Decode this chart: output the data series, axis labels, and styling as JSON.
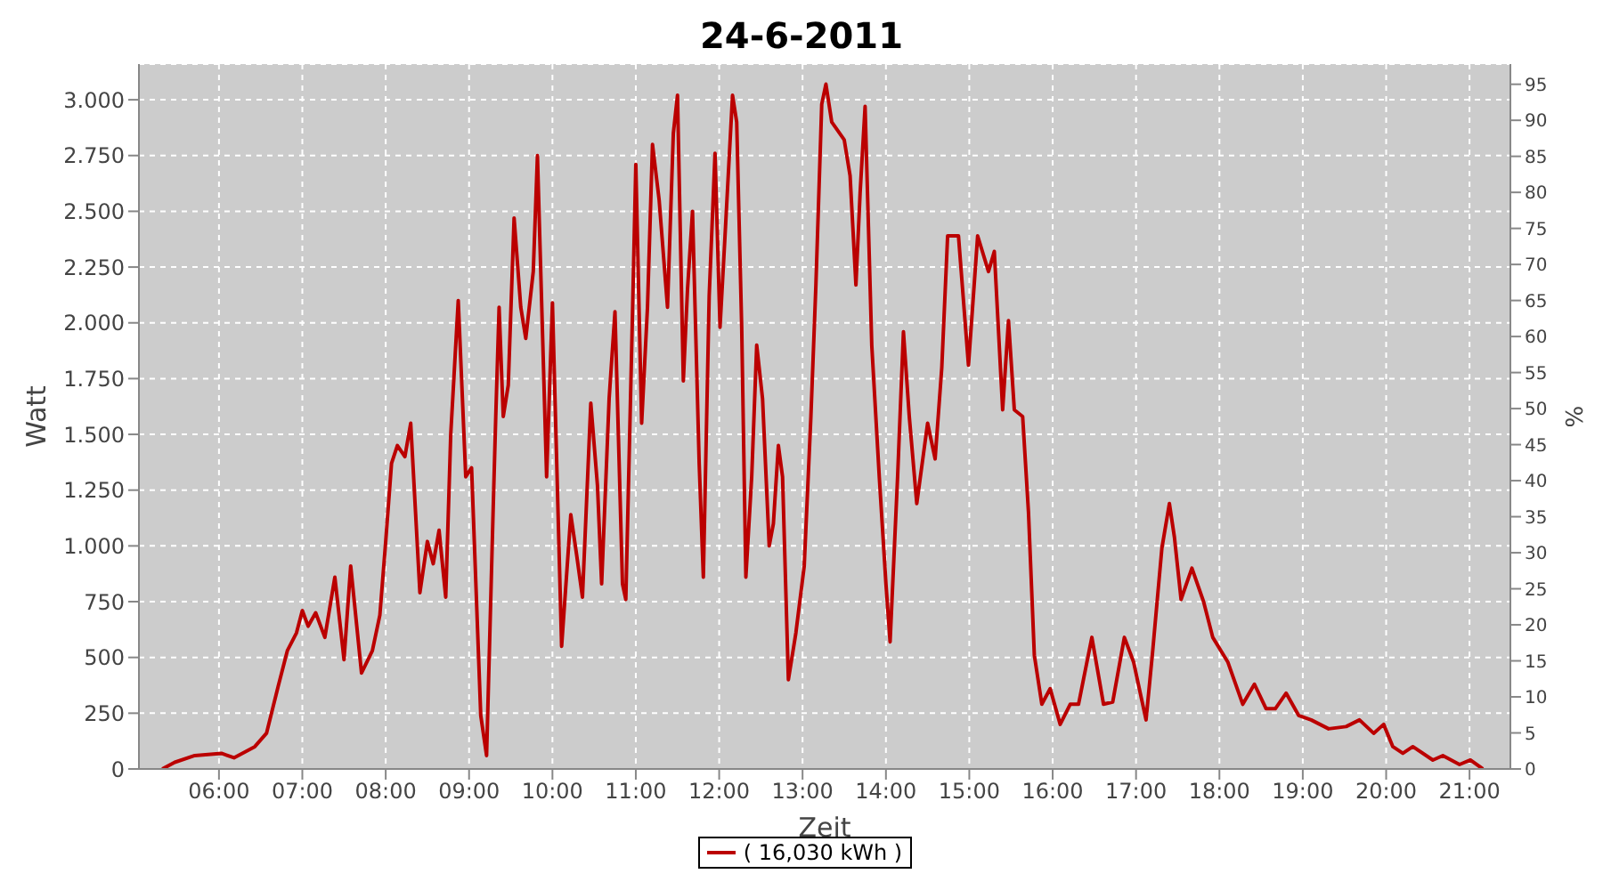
{
  "chart_data": {
    "type": "line",
    "title": "24-6-2011",
    "xlabel": "Zeit",
    "ylabel": "Watt",
    "y2label": "%",
    "x": [
      5.32,
      5.47,
      5.71,
      6.03,
      6.18,
      6.43,
      6.57,
      6.71,
      6.82,
      6.93,
      7.0,
      7.07,
      7.16,
      7.27,
      7.39,
      7.5,
      7.58,
      7.71,
      7.84,
      7.93,
      8.0,
      8.07,
      8.14,
      8.23,
      8.3,
      8.41,
      8.5,
      8.57,
      8.64,
      8.72,
      8.78,
      8.87,
      8.96,
      9.03,
      9.14,
      9.21,
      9.29,
      9.32,
      9.36,
      9.41,
      9.47,
      9.54,
      9.62,
      9.68,
      9.77,
      9.82,
      9.93,
      10.0,
      10.11,
      10.22,
      10.29,
      10.36,
      10.46,
      10.54,
      10.59,
      10.68,
      10.75,
      10.84,
      10.88,
      10.96,
      11.0,
      11.07,
      11.14,
      11.2,
      11.28,
      11.38,
      11.45,
      11.5,
      11.57,
      11.62,
      11.68,
      11.76,
      11.81,
      11.88,
      11.95,
      12.01,
      12.07,
      12.16,
      12.21,
      12.27,
      12.32,
      12.39,
      12.45,
      12.52,
      12.6,
      12.65,
      12.71,
      12.76,
      12.83,
      12.92,
      13.02,
      13.1,
      13.16,
      13.23,
      13.28,
      13.35,
      13.5,
      13.57,
      13.64,
      13.69,
      13.75,
      13.83,
      13.92,
      14.0,
      14.05,
      14.14,
      14.21,
      14.28,
      14.37,
      14.5,
      14.59,
      14.67,
      14.74,
      14.87,
      14.99,
      15.1,
      15.23,
      15.3,
      15.4,
      15.47,
      15.54,
      15.64,
      15.71,
      15.78,
      15.87,
      15.97,
      16.09,
      16.21,
      16.31,
      16.47,
      16.61,
      16.72,
      16.86,
      16.97,
      17.12,
      17.2,
      17.31,
      17.4,
      17.46,
      17.54,
      17.67,
      17.81,
      17.92,
      18.1,
      18.28,
      18.42,
      18.56,
      18.67,
      18.8,
      18.95,
      19.1,
      19.31,
      19.52,
      19.68,
      19.85,
      19.97,
      20.08,
      20.2,
      20.32,
      20.56,
      20.68,
      20.88,
      21.01,
      21.16
    ],
    "series": [
      {
        "name": "( 16,030 kWh )",
        "color": "#bb0000",
        "values": [
          0,
          30,
          60,
          70,
          50,
          100,
          160,
          370,
          530,
          610,
          710,
          640,
          700,
          590,
          860,
          490,
          910,
          430,
          530,
          690,
          1020,
          1370,
          1450,
          1400,
          1550,
          790,
          1020,
          920,
          1070,
          770,
          1500,
          2100,
          1310,
          1350,
          240,
          60,
          1180,
          1580,
          2070,
          1580,
          1720,
          2470,
          2070,
          1930,
          2230,
          2750,
          1310,
          2090,
          550,
          1140,
          960,
          770,
          1640,
          1270,
          830,
          1660,
          2050,
          830,
          760,
          2040,
          2710,
          1550,
          2070,
          2800,
          2550,
          2070,
          2850,
          3020,
          1740,
          2150,
          2500,
          1370,
          860,
          2120,
          2760,
          1980,
          2390,
          3020,
          2900,
          1980,
          860,
          1310,
          1900,
          1660,
          1000,
          1100,
          1450,
          1310,
          400,
          610,
          910,
          1580,
          2170,
          2980,
          3070,
          2900,
          2820,
          2660,
          2170,
          2580,
          2970,
          1900,
          1310,
          830,
          570,
          1310,
          1960,
          1580,
          1190,
          1550,
          1390,
          1800,
          2390,
          2390,
          1810,
          2390,
          2230,
          2320,
          1610,
          2010,
          1610,
          1580,
          1150,
          510,
          290,
          360,
          200,
          290,
          290,
          590,
          290,
          300,
          590,
          480,
          220,
          530,
          990,
          1190,
          1040,
          760,
          900,
          750,
          590,
          480,
          290,
          380,
          270,
          270,
          340,
          240,
          220,
          180,
          190,
          220,
          160,
          200,
          100,
          70,
          100,
          40,
          60,
          20,
          40,
          0
        ]
      }
    ],
    "xlim": [
      5.04,
      21.49
    ],
    "xticks": [
      {
        "value": 6,
        "label": "06:00"
      },
      {
        "value": 7,
        "label": "07:00"
      },
      {
        "value": 8,
        "label": "08:00"
      },
      {
        "value": 9,
        "label": "09:00"
      },
      {
        "value": 10,
        "label": "10:00"
      },
      {
        "value": 11,
        "label": "11:00"
      },
      {
        "value": 12,
        "label": "12:00"
      },
      {
        "value": 13,
        "label": "13:00"
      },
      {
        "value": 14,
        "label": "14:00"
      },
      {
        "value": 15,
        "label": "15:00"
      },
      {
        "value": 16,
        "label": "16:00"
      },
      {
        "value": 17,
        "label": "17:00"
      },
      {
        "value": 18,
        "label": "18:00"
      },
      {
        "value": 19,
        "label": "19:00"
      },
      {
        "value": 20,
        "label": "20:00"
      },
      {
        "value": 21,
        "label": "21:00"
      }
    ],
    "ylim": [
      0,
      3160
    ],
    "yticks": [
      0,
      250,
      500,
      750,
      {
        "value": 1000,
        "label": "1.000"
      },
      {
        "value": 1250,
        "label": "1.250"
      },
      {
        "value": 1500,
        "label": "1.500"
      },
      {
        "value": 1750,
        "label": "1.750"
      },
      {
        "value": 2000,
        "label": "2.000"
      },
      {
        "value": 2250,
        "label": "2.250"
      },
      {
        "value": 2500,
        "label": "2.500"
      },
      {
        "value": 2750,
        "label": "2.750"
      },
      {
        "value": 3000,
        "label": "3.000"
      }
    ],
    "y2lim": [
      0,
      97.8
    ],
    "y2ticks": [
      0,
      5,
      10,
      15,
      20,
      25,
      30,
      35,
      40,
      45,
      50,
      55,
      60,
      65,
      70,
      75,
      80,
      85,
      90,
      95
    ],
    "grid": true,
    "legend": "bottom",
    "marker": "none",
    "line_style": "solid"
  }
}
